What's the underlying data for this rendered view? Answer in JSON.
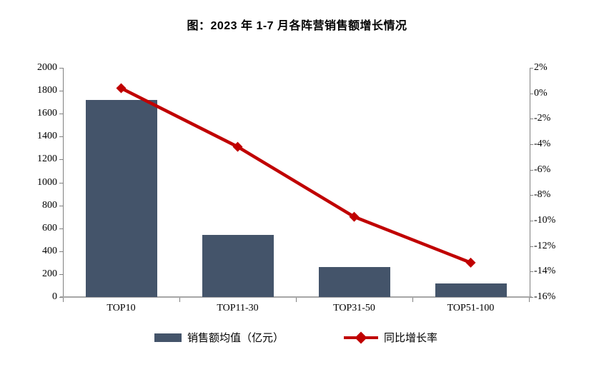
{
  "title": "图：2023 年 1-7 月各阵营销售额增长情况",
  "colors": {
    "bar": "#44546A",
    "line": "#C00000",
    "axis": "#808080",
    "baseline": "#A6A6A6",
    "text": "#000000"
  },
  "chart_data": {
    "type": "combo-bar-line",
    "title": "图：2023 年 1-7 月各阵营销售额增长情况",
    "categories": [
      "TOP10",
      "TOP11-30",
      "TOP31-50",
      "TOP51-100"
    ],
    "series": [
      {
        "name": "销售额均值（亿元）",
        "type": "bar",
        "axis": "left",
        "color": "#44546A",
        "values": [
          1720,
          545,
          262,
          120
        ]
      },
      {
        "name": "同比增长率",
        "type": "line",
        "axis": "right",
        "color": "#C00000",
        "marker": "diamond",
        "values": [
          0.4,
          -4.2,
          -9.7,
          -13.3
        ]
      }
    ],
    "axis_left": {
      "min": 0,
      "max": 2000,
      "step": 200,
      "ticks": [
        "2000",
        "1800",
        "1600",
        "1400",
        "1200",
        "1000",
        "800",
        "600",
        "400",
        "200",
        "0"
      ]
    },
    "axis_right": {
      "min": -16,
      "max": 2,
      "step": 2,
      "ticks": [
        "2%",
        "0%",
        "-2%",
        "-4%",
        "-6%",
        "-8%",
        "-10%",
        "-12%",
        "-14%",
        "-16%"
      ]
    },
    "grid": false,
    "legend_position": "bottom"
  },
  "legend": {
    "bar_label": "销售额均值（亿元）",
    "line_label": "同比增长率"
  }
}
